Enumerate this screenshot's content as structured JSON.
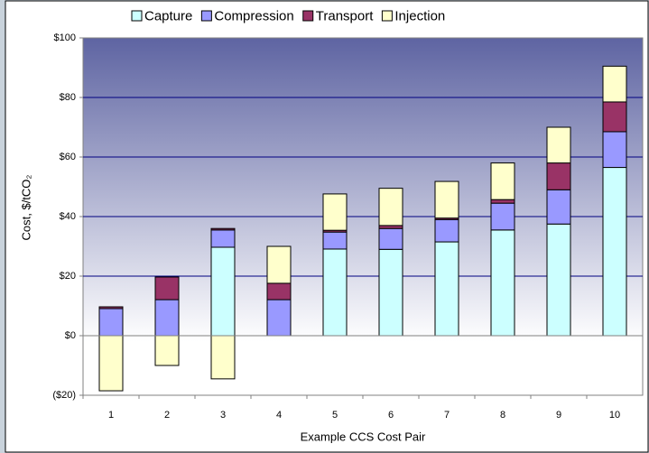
{
  "chart_data": {
    "type": "stacked_bar",
    "y_label": "Cost, $/tCO₂",
    "x_label": "Example CCS Cost Pair",
    "categories": [
      "1",
      "2",
      "3",
      "4",
      "5",
      "6",
      "7",
      "8",
      "9",
      "10"
    ],
    "series": [
      {
        "name": "Capture",
        "color": "#ccffff",
        "values": [
          0,
          0,
          29.7,
          0,
          29.1,
          29,
          31.5,
          35.5,
          37.5,
          56.5
        ]
      },
      {
        "name": "Compression",
        "color": "#9999ff",
        "values": [
          9.1,
          12.1,
          5.8,
          12.1,
          5.7,
          7,
          7.5,
          9,
          11.5,
          12
        ]
      },
      {
        "name": "Transport",
        "color": "#993366",
        "values": [
          0.6,
          7.6,
          0.5,
          5.5,
          0.6,
          1,
          0.5,
          1.2,
          9,
          10
        ]
      },
      {
        "name": "Injection",
        "color": "#ffffcc",
        "values": [
          -18.5,
          -10,
          -14.5,
          12.4,
          12.2,
          12.5,
          12.3,
          12.3,
          12,
          12
        ]
      }
    ],
    "ylim": [
      -20,
      100
    ],
    "yticks": [
      {
        "value": -20,
        "label": "($20)"
      },
      {
        "value": 0,
        "label": "$0"
      },
      {
        "value": 20,
        "label": "$20"
      },
      {
        "value": 40,
        "label": "$40"
      },
      {
        "value": 60,
        "label": "$60"
      },
      {
        "value": 80,
        "label": "$80"
      },
      {
        "value": 100,
        "label": "$100"
      }
    ],
    "negative_tick_color": "#cc0000",
    "grid": true,
    "grid_color": "#000080",
    "legend": "top"
  }
}
